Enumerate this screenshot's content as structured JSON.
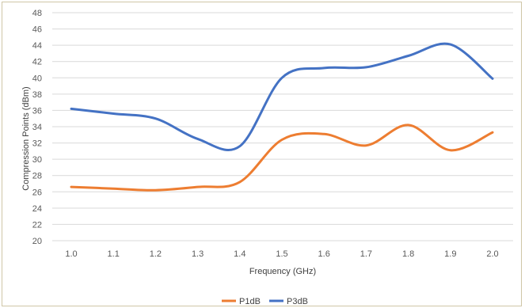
{
  "chart_data": {
    "type": "line",
    "title": "",
    "xlabel": "Frequency (GHz)",
    "ylabel": "Compression Points (dBm)",
    "categories": [
      "1.0",
      "1.1",
      "1.2",
      "1.3",
      "1.4",
      "1.5",
      "1.6",
      "1.7",
      "1.8",
      "1.9",
      "2.0"
    ],
    "yticks": [
      "20",
      "22",
      "24",
      "26",
      "28",
      "30",
      "32",
      "34",
      "36",
      "38",
      "40",
      "42",
      "44",
      "46",
      "48"
    ],
    "ylim": [
      20,
      48
    ],
    "grid": true,
    "legend_position": "bottom",
    "series": [
      {
        "name": "P1dB",
        "color": "#ed7d31",
        "values": [
          26.6,
          26.4,
          26.2,
          26.6,
          27.2,
          32.4,
          33.1,
          31.7,
          34.2,
          31.1,
          33.3
        ]
      },
      {
        "name": "P3dB",
        "color": "#4472c4",
        "values": [
          36.2,
          35.6,
          35.0,
          32.5,
          31.6,
          40.0,
          41.2,
          41.3,
          42.7,
          44.1,
          39.9
        ]
      }
    ]
  }
}
